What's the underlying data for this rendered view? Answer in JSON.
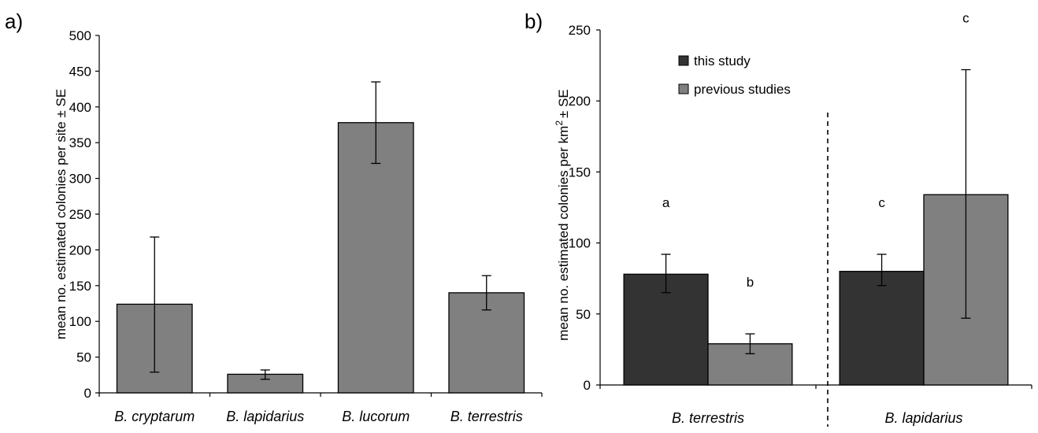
{
  "chart_data": [
    {
      "type": "bar",
      "panel_label": "a)",
      "categories": [
        "B. cryptarum",
        "B. lapidarius",
        "B. lucorum",
        "B. terrestris"
      ],
      "values": [
        124,
        26,
        378,
        140
      ],
      "error_low": [
        29,
        19,
        321,
        116
      ],
      "error_high": [
        218,
        32,
        435,
        164
      ],
      "ylabel": "mean no. estimated colonies per site  ± SE",
      "ylim": [
        0,
        500
      ],
      "yticks": [
        0,
        50,
        100,
        150,
        200,
        250,
        300,
        350,
        400,
        450,
        500
      ],
      "bar_color": "#808080",
      "grid": false
    },
    {
      "type": "bar",
      "panel_label": "b)",
      "categories": [
        "B. terrestris",
        "B. lapidarius"
      ],
      "series": [
        {
          "name": "this study",
          "color": "#333333",
          "values": [
            78,
            80
          ],
          "error_low": [
            65,
            70
          ],
          "error_high": [
            92,
            92
          ]
        },
        {
          "name": "previous studies",
          "color": "#808080",
          "values": [
            29,
            134
          ],
          "error_low": [
            22,
            47
          ],
          "error_high": [
            36,
            222
          ]
        }
      ],
      "significance_labels": [
        [
          "a",
          "b"
        ],
        [
          "c",
          "c"
        ]
      ],
      "ylabel_prefix": "mean no. estimated colonies per km",
      "ylabel_sup": "2",
      "ylabel_suffix": "± SE",
      "ylim": [
        0,
        250
      ],
      "yticks": [
        0,
        50,
        100,
        150,
        200,
        250
      ],
      "legend_position": "top-left",
      "grid": false,
      "divider": "dashed"
    }
  ]
}
